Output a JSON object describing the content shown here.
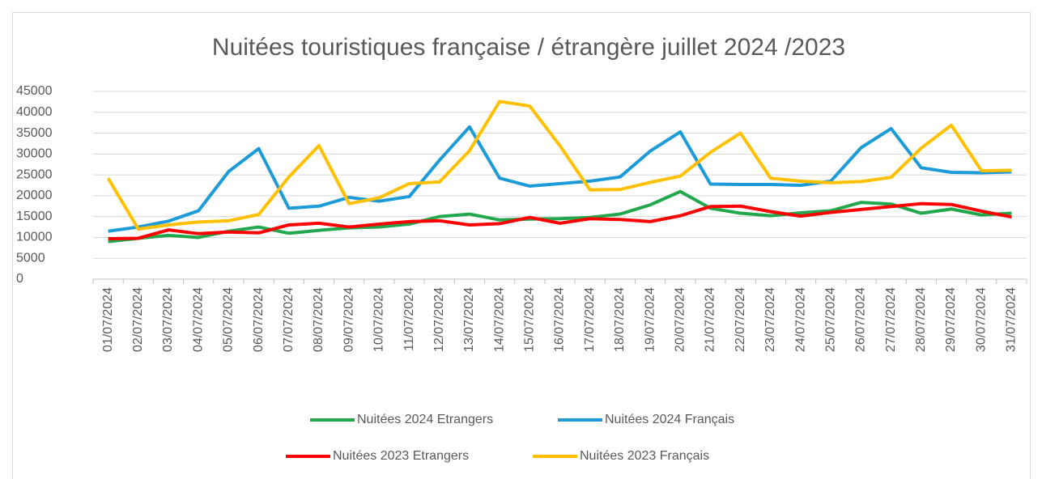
{
  "chart_data": {
    "type": "line",
    "title": "Nuitées touristiques française / étrangère juillet 2024 /2023",
    "categories": [
      "01/07/2024",
      "02/07/2024",
      "03/07/2024",
      "04/07/2024",
      "05/07/2024",
      "06/07/2024",
      "07/07/2024",
      "08/07/2024",
      "09/07/2024",
      "10/07/2024",
      "11/07/2024",
      "12/07/2024",
      "13/07/2024",
      "14/07/2024",
      "15/07/2024",
      "16/07/2024",
      "17/07/2024",
      "18/07/2024",
      "19/07/2024",
      "20/07/2024",
      "21/07/2024",
      "22/07/2024",
      "23/07/2024",
      "24/07/2024",
      "25/07/2024",
      "26/07/2024",
      "27/07/2024",
      "28/07/2024",
      "29/07/2024",
      "30/07/2024",
      "31/07/2024"
    ],
    "series": [
      {
        "name": "Nuitées 2024 Etrangers",
        "color": "#22a84c",
        "values": [
          9000,
          9800,
          10500,
          10000,
          11500,
          12500,
          11000,
          11700,
          12300,
          12500,
          13200,
          15000,
          15600,
          14200,
          14400,
          14500,
          14800,
          15600,
          17800,
          21000,
          17000,
          15800,
          15200,
          15900,
          16400,
          18400,
          18000,
          15800,
          16800,
          15400,
          15800
        ]
      },
      {
        "name": "Nuitées 2024 Français",
        "color": "#1d9bd8",
        "values": [
          11500,
          12500,
          13900,
          16400,
          25800,
          31300,
          17000,
          17500,
          19600,
          18700,
          19800,
          28500,
          36500,
          24200,
          22300,
          22900,
          23500,
          24500,
          30700,
          35300,
          22800,
          22700,
          22700,
          22500,
          23500,
          31500,
          36100,
          26700,
          25600,
          25500,
          25700
        ]
      },
      {
        "name": "Nuitées 2023 Etrangers",
        "color": "#ff0000",
        "values": [
          9700,
          9800,
          11800,
          10900,
          11300,
          11100,
          13000,
          13400,
          12500,
          13200,
          13800,
          14000,
          13000,
          13300,
          14800,
          13400,
          14500,
          14300,
          13800,
          15200,
          17400,
          17500,
          16200,
          15100,
          16000,
          16700,
          17400,
          18100,
          17900,
          16300,
          14900
        ]
      },
      {
        "name": "Nuitées 2023 Français",
        "color": "#ffc000",
        "values": [
          24200,
          12000,
          13000,
          13700,
          14000,
          15500,
          24500,
          32000,
          18100,
          19500,
          22900,
          23300,
          30800,
          42600,
          41500,
          32000,
          21400,
          21500,
          23200,
          24700,
          30400,
          35000,
          24200,
          23500,
          23100,
          23400,
          24400,
          31400,
          36900,
          26000,
          26100
        ]
      }
    ],
    "ylim": [
      0,
      45000
    ],
    "yticks": [
      0,
      5000,
      10000,
      15000,
      20000,
      25000,
      30000,
      35000,
      40000,
      45000
    ],
    "grid": true
  }
}
